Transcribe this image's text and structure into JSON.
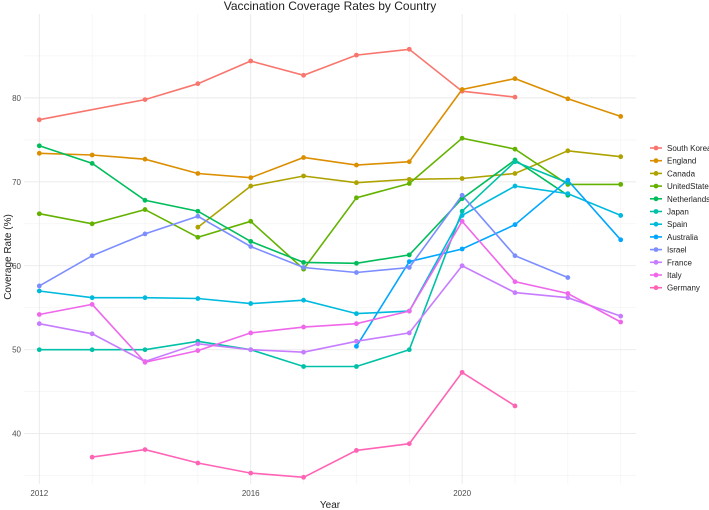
{
  "chart_data": {
    "type": "line",
    "title": "Vaccination Coverage Rates by Country",
    "xlabel": "Year",
    "ylabel": "Coverage Rate (%)",
    "xlim": [
      2012,
      2023
    ],
    "ylim": [
      34,
      90
    ],
    "x_ticks": [
      2012,
      2016,
      2020
    ],
    "y_ticks": [
      40,
      50,
      60,
      70,
      80
    ],
    "grid": true,
    "legend_position": "right",
    "series": [
      {
        "name": "South Korea",
        "color": "#F8766D",
        "points": [
          [
            2012,
            77.4
          ],
          [
            2014,
            79.8
          ],
          [
            2015,
            81.7
          ],
          [
            2016,
            84.4
          ],
          [
            2017,
            82.7
          ],
          [
            2018,
            85.1
          ],
          [
            2019,
            85.8
          ],
          [
            2020,
            80.8
          ],
          [
            2021,
            80.1
          ]
        ]
      },
      {
        "name": "England",
        "color": "#DB8E00",
        "points": [
          [
            2012,
            73.4
          ],
          [
            2013,
            73.2
          ],
          [
            2014,
            72.7
          ],
          [
            2015,
            71.0
          ],
          [
            2016,
            70.5
          ],
          [
            2017,
            72.9
          ],
          [
            2018,
            72.0
          ],
          [
            2019,
            72.4
          ],
          [
            2020,
            81.0
          ],
          [
            2021,
            82.3
          ],
          [
            2022,
            79.9
          ],
          [
            2023,
            77.8
          ]
        ]
      },
      {
        "name": "Canada",
        "color": "#AEA200",
        "points": [
          [
            2015,
            64.6
          ],
          [
            2016,
            69.5
          ],
          [
            2017,
            70.7
          ],
          [
            2018,
            69.9
          ],
          [
            2019,
            70.3
          ],
          [
            2020,
            70.4
          ],
          [
            2021,
            71.0
          ],
          [
            2022,
            73.7
          ],
          [
            2023,
            73.0
          ]
        ]
      },
      {
        "name": "UnitedStates",
        "color": "#64B200",
        "points": [
          [
            2012,
            66.2
          ],
          [
            2013,
            65.0
          ],
          [
            2014,
            66.7
          ],
          [
            2015,
            63.4
          ],
          [
            2016,
            65.3
          ],
          [
            2017,
            59.6
          ],
          [
            2018,
            68.1
          ],
          [
            2019,
            69.8
          ],
          [
            2020,
            75.2
          ],
          [
            2021,
            73.9
          ],
          [
            2022,
            69.7
          ],
          [
            2023,
            69.7
          ]
        ]
      },
      {
        "name": "Netherlands",
        "color": "#00BD5C",
        "points": [
          [
            2012,
            74.3
          ],
          [
            2013,
            72.2
          ],
          [
            2014,
            67.8
          ],
          [
            2015,
            66.5
          ],
          [
            2016,
            62.9
          ],
          [
            2017,
            60.4
          ],
          [
            2018,
            60.3
          ],
          [
            2019,
            61.3
          ],
          [
            2020,
            68.0
          ],
          [
            2021,
            72.6
          ],
          [
            2022,
            68.4
          ]
        ]
      },
      {
        "name": "Japan",
        "color": "#00C1A7",
        "points": [
          [
            2012,
            50.0
          ],
          [
            2013,
            50.0
          ],
          [
            2014,
            50.0
          ],
          [
            2015,
            51.0
          ],
          [
            2016,
            50.0
          ],
          [
            2017,
            48.0
          ],
          [
            2018,
            48.0
          ],
          [
            2019,
            50.0
          ],
          [
            2020,
            66.5
          ],
          [
            2021,
            72.4
          ],
          [
            2022,
            69.9
          ]
        ]
      },
      {
        "name": "Spain",
        "color": "#00BADE",
        "points": [
          [
            2012,
            57.0
          ],
          [
            2013,
            56.2
          ],
          [
            2014,
            56.2
          ],
          [
            2015,
            56.1
          ],
          [
            2016,
            55.5
          ],
          [
            2017,
            55.9
          ],
          [
            2018,
            54.3
          ],
          [
            2019,
            54.6
          ],
          [
            2020,
            66.0
          ],
          [
            2021,
            69.5
          ],
          [
            2022,
            68.6
          ],
          [
            2023,
            66.0
          ]
        ]
      },
      {
        "name": "Australia",
        "color": "#00A6FF",
        "points": [
          [
            2018,
            50.4
          ],
          [
            2019,
            60.5
          ],
          [
            2020,
            62.0
          ],
          [
            2021,
            64.9
          ],
          [
            2022,
            70.2
          ],
          [
            2023,
            63.1
          ]
        ]
      },
      {
        "name": "Israel",
        "color": "#7C8EFF",
        "points": [
          [
            2012,
            57.6
          ],
          [
            2013,
            61.2
          ],
          [
            2014,
            63.8
          ],
          [
            2015,
            65.9
          ],
          [
            2016,
            62.3
          ],
          [
            2017,
            59.8
          ],
          [
            2018,
            59.2
          ],
          [
            2019,
            59.8
          ],
          [
            2020,
            68.4
          ],
          [
            2021,
            61.2
          ],
          [
            2022,
            58.6
          ]
        ]
      },
      {
        "name": "France",
        "color": "#C77CFF",
        "points": [
          [
            2012,
            53.1
          ],
          [
            2013,
            51.9
          ],
          [
            2014,
            48.6
          ],
          [
            2015,
            50.7
          ],
          [
            2016,
            50.0
          ],
          [
            2017,
            49.7
          ],
          [
            2018,
            51.0
          ],
          [
            2019,
            52.0
          ],
          [
            2020,
            60.0
          ],
          [
            2021,
            56.8
          ],
          [
            2022,
            56.2
          ],
          [
            2023,
            54.0
          ]
        ]
      },
      {
        "name": "Italy",
        "color": "#EF67EB",
        "points": [
          [
            2012,
            54.2
          ],
          [
            2013,
            55.4
          ],
          [
            2014,
            48.5
          ],
          [
            2015,
            49.9
          ],
          [
            2016,
            52.0
          ],
          [
            2017,
            52.7
          ],
          [
            2018,
            53.1
          ],
          [
            2019,
            54.6
          ],
          [
            2020,
            65.3
          ],
          [
            2021,
            58.1
          ],
          [
            2022,
            56.7
          ],
          [
            2023,
            53.3
          ]
        ]
      },
      {
        "name": "Germany",
        "color": "#FF63B6",
        "points": [
          [
            2013,
            37.2
          ],
          [
            2014,
            38.1
          ],
          [
            2015,
            36.5
          ],
          [
            2016,
            35.3
          ],
          [
            2017,
            34.8
          ],
          [
            2018,
            38.0
          ],
          [
            2019,
            38.8
          ],
          [
            2020,
            47.3
          ],
          [
            2021,
            43.3
          ]
        ]
      }
    ]
  }
}
